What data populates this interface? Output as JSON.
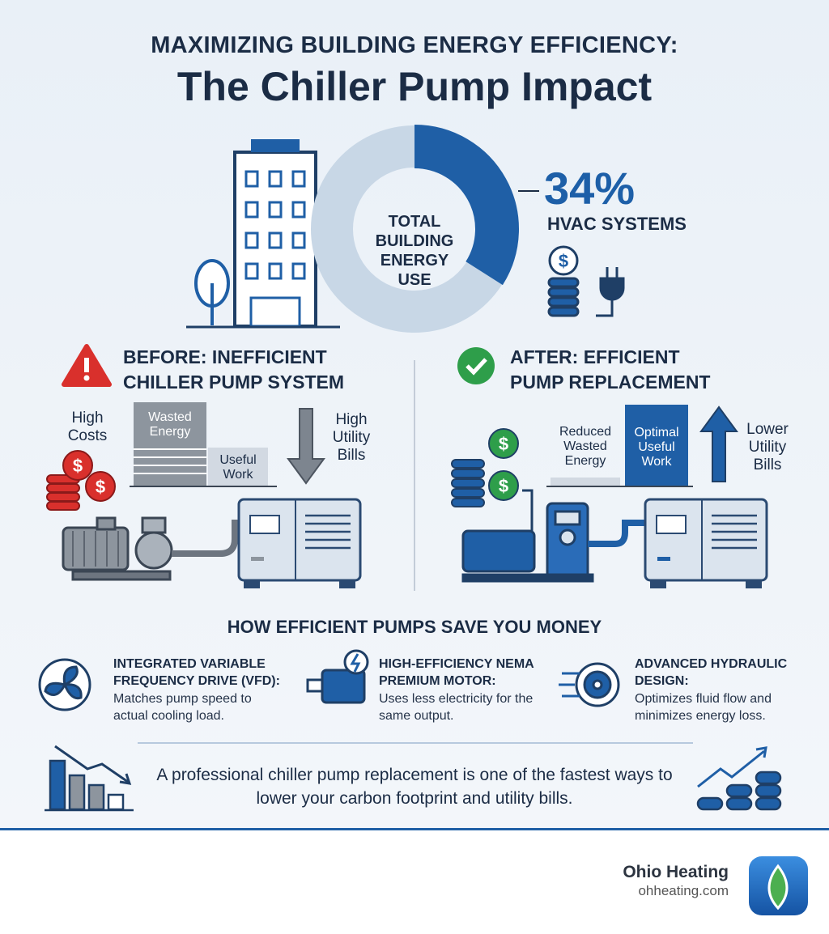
{
  "header": {
    "kicker": "MAXIMIZING BUILDING ENERGY EFFICIENCY:",
    "title": "The Chiller Pump Impact"
  },
  "donut": {
    "center_label": "TOTAL BUILDING ENERGY USE",
    "share": {
      "value": 34,
      "label": "34%"
    },
    "caption": "HVAC SYSTEMS"
  },
  "before": {
    "title": "BEFORE: INEFFICIENT CHILLER PUMP SYSTEM",
    "costs": "High Costs",
    "wasted": "Wasted Energy",
    "useful": "Useful Work",
    "bills": "High Utility Bills"
  },
  "after": {
    "title": "AFTER: EFFICIENT PUMP REPLACEMENT",
    "wasted": "Reduced Wasted Energy",
    "useful": "Optimal Useful Work",
    "bills": "Lower Utility Bills"
  },
  "savings": {
    "title": "HOW EFFICIENT PUMPS SAVE YOU MONEY",
    "items": [
      {
        "title": "INTEGRATED VARIABLE FREQUENCY DRIVE (VFD):",
        "text": "Matches pump speed to actual cooling load."
      },
      {
        "title": "HIGH-EFFICIENCY NEMA PREMIUM MOTOR:",
        "text": "Uses less electricity for the same output."
      },
      {
        "title": "ADVANCED HYDRAULIC DESIGN:",
        "text": "Optimizes fluid flow and minimizes energy loss."
      }
    ]
  },
  "conclusion": "A professional chiller pump replacement is one of the fastest ways to lower your carbon footprint and utility bills.",
  "footer": {
    "brand": "Ohio Heating",
    "url": "ohheating.com"
  }
}
